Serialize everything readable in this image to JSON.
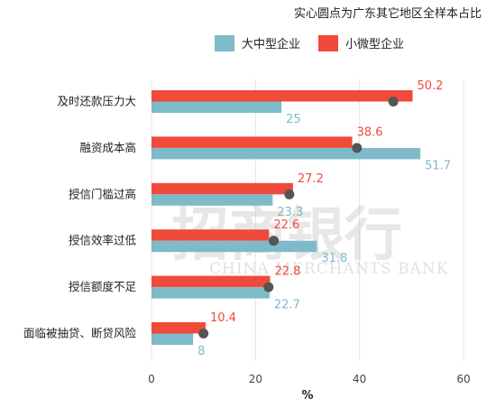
{
  "note": "实心圆点为广东其它地区全样本占比",
  "watermark": {
    "cn": "招商银行",
    "en": "CHINA MERCHANTS BANK"
  },
  "colors": {
    "large": "#7ebac8",
    "small": "#f04a3a",
    "dot": "#555555",
    "grid": "#e4e4e4"
  },
  "chart_data": {
    "type": "bar",
    "orientation": "horizontal",
    "title": "",
    "xlabel": "%",
    "ylabel": "",
    "xlim": [
      0,
      60
    ],
    "xticks": [
      0,
      20,
      40,
      60
    ],
    "grid": true,
    "legend_position": "top",
    "categories": [
      "及时还款压力大",
      "融资成本高",
      "授信门槛过高",
      "授信效率过低",
      "授信额度不足",
      "面临被抽贷、断贷风险"
    ],
    "series": [
      {
        "name": "大中型企业",
        "values": [
          25,
          51.7,
          23.3,
          31.8,
          22.7,
          8
        ]
      },
      {
        "name": "小微型企业",
        "values": [
          50.2,
          38.6,
          27.2,
          22.6,
          22.8,
          10.4
        ]
      }
    ],
    "reference_points": [
      46.5,
      39.5,
      26.5,
      23.5,
      22.5,
      10
    ]
  }
}
